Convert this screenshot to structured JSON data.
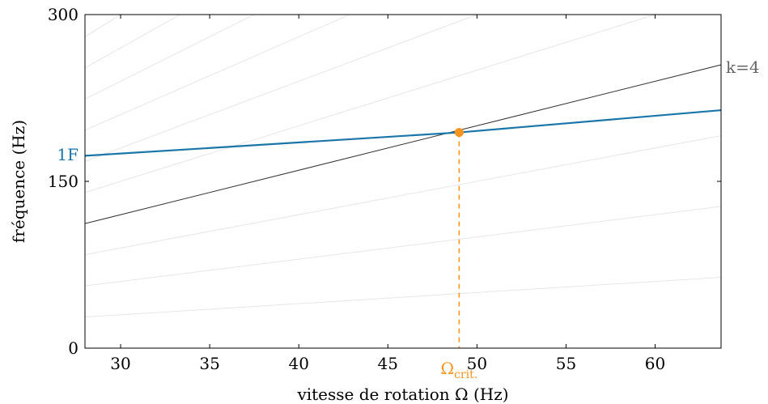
{
  "chart_data": {
    "type": "line",
    "xlabel": "vitesse de rotation Ω (Hz)",
    "ylabel": "fréquence (Hz)",
    "xlim": [
      28,
      63.7
    ],
    "ylim": [
      0,
      300
    ],
    "xticks": [
      30,
      35,
      40,
      45,
      50,
      55,
      60
    ],
    "yticks": [
      0,
      150,
      300
    ],
    "grid": false,
    "series": [
      {
        "name": "1F",
        "color": "#1a75a8",
        "x": [
          28,
          49,
          63.7
        ],
        "y": [
          173,
          194,
          214
        ]
      }
    ],
    "harmonic_lines": {
      "label_k": "k=4",
      "highlight_k": 4,
      "k_values": [
        1,
        2,
        3,
        4,
        5,
        6,
        7,
        8,
        9,
        10,
        11,
        12,
        13,
        14,
        15,
        16,
        17
      ],
      "highlight_color": "#333333",
      "faint_color": "#e6e6e6"
    },
    "critical_point": {
      "label": "Ω",
      "label_sub": "crit.",
      "x": 49,
      "y": 194,
      "color": "#f7941d"
    }
  }
}
